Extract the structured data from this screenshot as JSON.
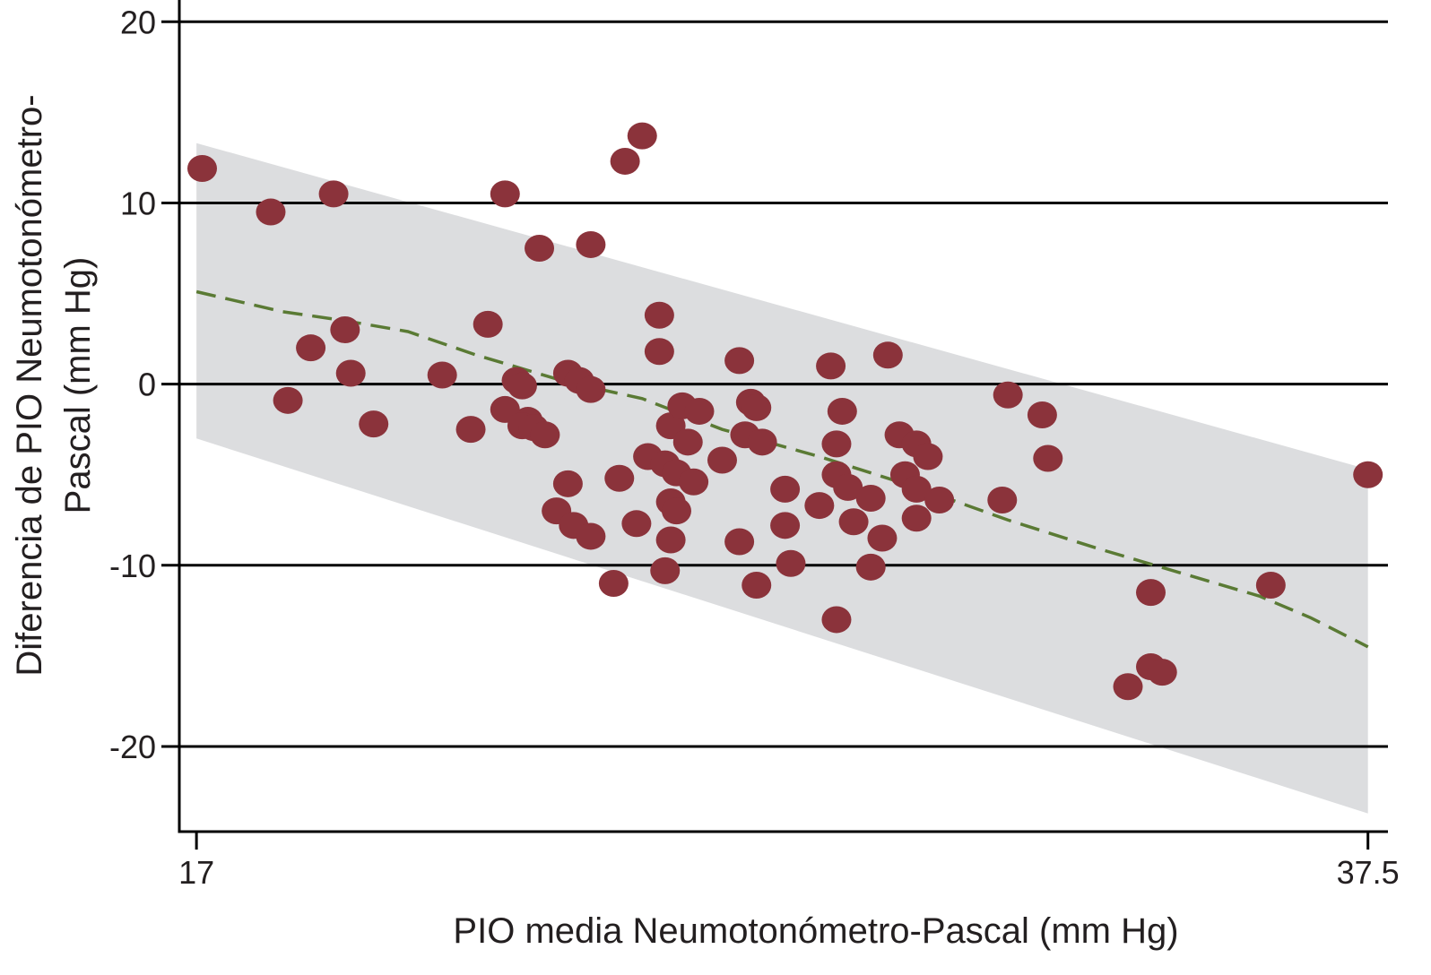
{
  "chart_data": {
    "type": "scatter",
    "title": "",
    "xlabel": "PIO media Neumotonómetro-Pascal (mm Hg)",
    "ylabel_lines": [
      "Diferencia de PIO Neumotonómetro-",
      "Pascal (mm Hg)"
    ],
    "xlim": [
      16.7,
      37.85
    ],
    "ylim": [
      -24.7,
      21.2
    ],
    "x_ticks": [
      17,
      37.5
    ],
    "x_tick_labels": [
      "17",
      "37.5"
    ],
    "y_ticks": [
      20,
      10,
      0,
      -10,
      -20
    ],
    "y_tick_labels": [
      "20",
      "10",
      "0",
      "-10",
      "-20"
    ],
    "grid": "horizontal",
    "colors": {
      "points": "#8b333b",
      "band": "#dcdddf",
      "trend": "#5a7a34",
      "axis": "#000000"
    },
    "band": {
      "upper": [
        [
          17,
          13.3
        ],
        [
          37.5,
          -4.7
        ]
      ],
      "lower": [
        [
          17,
          -3.0
        ],
        [
          37.5,
          -23.7
        ]
      ]
    },
    "trend_line": [
      [
        17,
        5.1
      ],
      [
        18.5,
        4.0
      ],
      [
        19.6,
        3.5
      ],
      [
        20.7,
        2.9
      ],
      [
        21.9,
        1.6
      ],
      [
        23.5,
        0.1
      ],
      [
        24.8,
        -0.8
      ],
      [
        26.2,
        -2.5
      ],
      [
        27.9,
        -4.0
      ],
      [
        29.6,
        -5.7
      ],
      [
        31.2,
        -7.5
      ],
      [
        32.8,
        -9.1
      ],
      [
        34.2,
        -10.4
      ],
      [
        35.6,
        -11.7
      ],
      [
        36.5,
        -12.9
      ],
      [
        37.5,
        -14.5
      ]
    ],
    "points": [
      [
        17.1,
        11.9
      ],
      [
        18.3,
        9.5
      ],
      [
        19.4,
        10.5
      ],
      [
        19.6,
        3.0
      ],
      [
        19.0,
        2.0
      ],
      [
        19.7,
        0.6
      ],
      [
        18.6,
        -0.9
      ],
      [
        20.1,
        -2.2
      ],
      [
        21.3,
        0.5
      ],
      [
        21.8,
        -2.5
      ],
      [
        22.1,
        3.3
      ],
      [
        22.4,
        10.5
      ],
      [
        22.6,
        0.2
      ],
      [
        22.7,
        -0.1
      ],
      [
        22.4,
        -1.4
      ],
      [
        22.8,
        -2.0
      ],
      [
        22.7,
        -2.3
      ],
      [
        22.9,
        -2.4
      ],
      [
        23.1,
        -2.8
      ],
      [
        23.0,
        7.5
      ],
      [
        23.5,
        0.6
      ],
      [
        23.7,
        0.2
      ],
      [
        23.9,
        -0.3
      ],
      [
        23.5,
        -5.5
      ],
      [
        23.3,
        -7.0
      ],
      [
        23.6,
        -7.8
      ],
      [
        23.9,
        -8.4
      ],
      [
        23.9,
        7.7
      ],
      [
        24.3,
        -11.0
      ],
      [
        24.4,
        -5.2
      ],
      [
        24.7,
        -7.7
      ],
      [
        24.5,
        12.3
      ],
      [
        24.8,
        13.7
      ],
      [
        25.1,
        3.8
      ],
      [
        25.1,
        1.8
      ],
      [
        24.9,
        -4.0
      ],
      [
        25.3,
        -2.3
      ],
      [
        25.2,
        -4.4
      ],
      [
        25.4,
        -4.9
      ],
      [
        25.3,
        -6.5
      ],
      [
        25.4,
        -7.0
      ],
      [
        25.3,
        -8.6
      ],
      [
        25.2,
        -10.3
      ],
      [
        25.5,
        -1.2
      ],
      [
        25.8,
        -1.5
      ],
      [
        25.6,
        -3.2
      ],
      [
        25.7,
        -5.4
      ],
      [
        26.2,
        -4.2
      ],
      [
        26.5,
        1.3
      ],
      [
        26.5,
        -8.7
      ],
      [
        26.7,
        -1.0
      ],
      [
        26.8,
        -1.3
      ],
      [
        26.6,
        -2.8
      ],
      [
        26.9,
        -3.2
      ],
      [
        26.8,
        -11.1
      ],
      [
        27.3,
        -5.8
      ],
      [
        27.3,
        -7.8
      ],
      [
        27.4,
        -9.9
      ],
      [
        27.9,
        -6.7
      ],
      [
        28.1,
        1.0
      ],
      [
        28.3,
        -1.5
      ],
      [
        28.2,
        -3.3
      ],
      [
        28.2,
        -5.0
      ],
      [
        28.4,
        -5.7
      ],
      [
        28.5,
        -7.6
      ],
      [
        28.2,
        -13.0
      ],
      [
        28.8,
        -6.3
      ],
      [
        28.8,
        -10.1
      ],
      [
        29.0,
        -8.5
      ],
      [
        29.1,
        1.6
      ],
      [
        29.3,
        -2.8
      ],
      [
        29.4,
        -5.0
      ],
      [
        29.6,
        -3.3
      ],
      [
        29.8,
        -4.0
      ],
      [
        29.6,
        -5.8
      ],
      [
        29.6,
        -7.4
      ],
      [
        30.0,
        -6.4
      ],
      [
        31.1,
        -6.4
      ],
      [
        31.2,
        -0.6
      ],
      [
        31.8,
        -1.7
      ],
      [
        31.9,
        -4.1
      ],
      [
        33.3,
        -16.7
      ],
      [
        33.7,
        -11.5
      ],
      [
        33.7,
        -15.6
      ],
      [
        33.9,
        -15.9
      ],
      [
        35.8,
        -11.1
      ],
      [
        37.5,
        -5.0
      ]
    ]
  }
}
